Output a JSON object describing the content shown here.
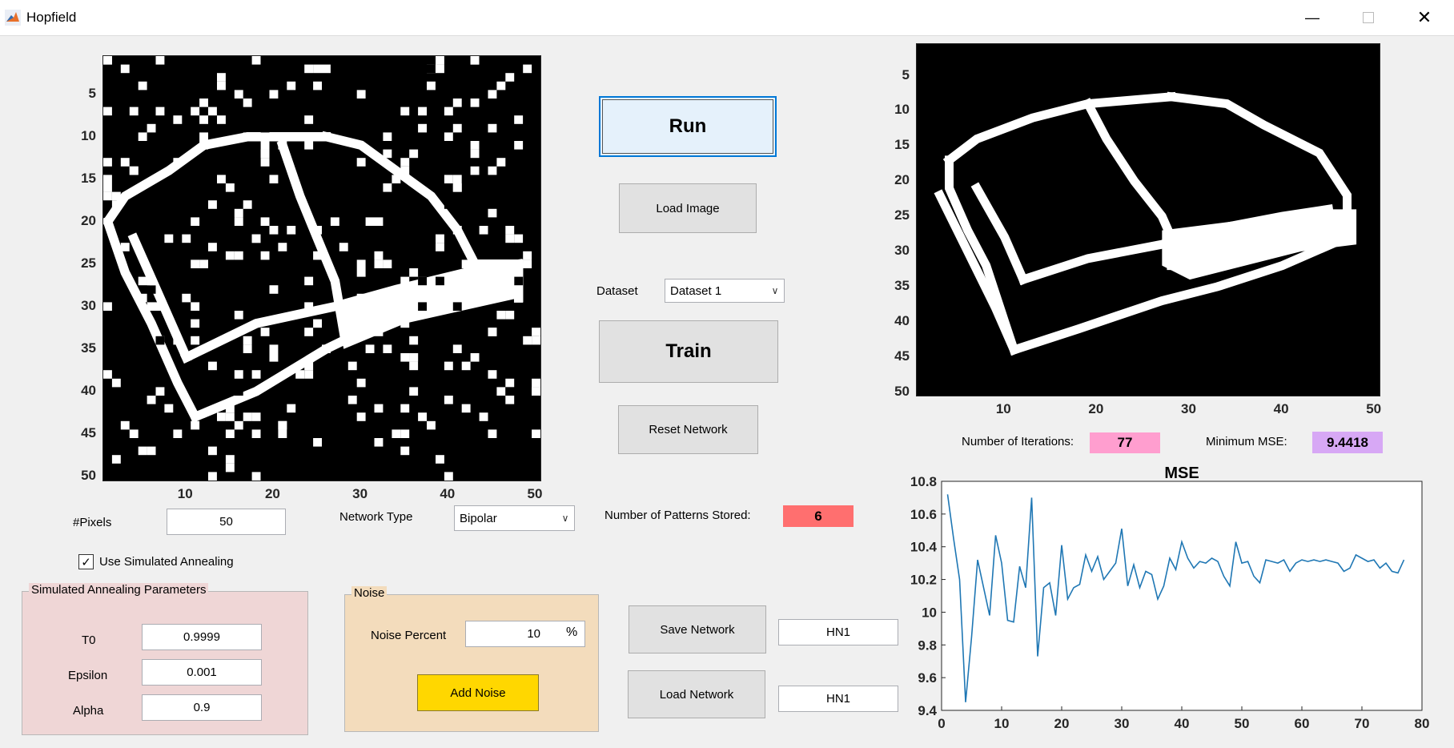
{
  "window": {
    "title": "Hopfield"
  },
  "input_image": {
    "rows": 50,
    "cols": 50,
    "y_ticks": [
      "5",
      "10",
      "15",
      "20",
      "25",
      "30",
      "35",
      "40",
      "45",
      "50"
    ],
    "x_ticks": [
      "10",
      "20",
      "30",
      "40",
      "50"
    ]
  },
  "output_image": {
    "rows": 50,
    "cols": 50,
    "y_ticks": [
      "5",
      "10",
      "15",
      "20",
      "25",
      "30",
      "35",
      "40",
      "45",
      "50"
    ],
    "x_ticks": [
      "10",
      "20",
      "30",
      "40",
      "50"
    ]
  },
  "buttons": {
    "run": "Run",
    "load_image": "Load Image",
    "train": "Train",
    "reset_network": "Reset Network",
    "save_network": "Save Network",
    "load_network": "Load Network",
    "add_noise": "Add Noise"
  },
  "dataset": {
    "label": "Dataset",
    "selected": "Dataset 1"
  },
  "network_type": {
    "label": "Network Type",
    "selected": "Bipolar"
  },
  "pixels": {
    "label": "#Pixels",
    "value": "50"
  },
  "annealing": {
    "checkbox_label": "Use Simulated Annealing",
    "checked": true
  },
  "sa_params": {
    "title": "Simulated Annealing Parameters",
    "t0_label": "T0",
    "t0": "0.9999",
    "epsilon_label": "Epsilon",
    "epsilon": "0.001",
    "alpha_label": "Alpha",
    "alpha": "0.9"
  },
  "noise": {
    "title": "Noise",
    "percent_label": "Noise Percent",
    "percent": "10",
    "unit": "%"
  },
  "patterns": {
    "label": "Number of Patterns Stored:",
    "value": "6"
  },
  "iterations": {
    "label": "Number of Iterations:",
    "value": "77"
  },
  "min_mse": {
    "label": "Minimum MSE:",
    "value": "9.4418"
  },
  "save_name": "HN1",
  "load_name": "HN1",
  "colors": {
    "patterns_bg": "#ff6f6f",
    "iter_bg": "#ff9ecf",
    "mse_bg": "#d7a8f5",
    "sa_bg": "#efd6d6",
    "noise_bg": "#f3dcbc",
    "add_noise_bg": "#ffd700",
    "line": "#1f77b4"
  },
  "chart_data": {
    "type": "line",
    "title": "MSE",
    "xlabel": "",
    "ylabel": "",
    "xlim": [
      0,
      80
    ],
    "ylim": [
      9.4,
      10.8
    ],
    "x_ticks": [
      0,
      10,
      20,
      30,
      40,
      50,
      60,
      70,
      80
    ],
    "y_ticks": [
      9.4,
      9.6,
      9.8,
      10,
      10.2,
      10.4,
      10.6,
      10.8
    ],
    "y_tick_labels": [
      "9.4",
      "9.6",
      "9.8",
      "10",
      "10.2",
      "10.4",
      "10.6",
      "10.8"
    ],
    "series": [
      {
        "values": [
          10.72,
          10.45,
          10.2,
          9.45,
          9.85,
          10.32,
          10.15,
          9.98,
          10.47,
          10.3,
          9.95,
          9.94,
          10.28,
          10.15,
          10.7,
          9.73,
          10.15,
          10.18,
          9.98,
          10.41,
          10.08,
          10.15,
          10.17,
          10.35,
          10.25,
          10.34,
          10.2,
          10.25,
          10.3,
          10.51,
          10.16,
          10.29,
          10.15,
          10.25,
          10.23,
          10.08,
          10.16,
          10.33,
          10.26,
          10.43,
          10.33,
          10.27,
          10.31,
          10.3,
          10.33,
          10.31,
          10.22,
          10.16,
          10.43,
          10.3,
          10.31,
          10.22,
          10.18,
          10.32,
          10.31,
          10.3,
          10.32,
          10.25,
          10.3,
          10.32,
          10.31,
          10.32,
          10.31,
          10.32,
          10.31,
          10.3,
          10.25,
          10.27,
          10.35,
          10.33,
          10.31,
          10.32,
          10.27,
          10.3,
          10.25,
          10.24,
          10.32
        ]
      }
    ]
  }
}
